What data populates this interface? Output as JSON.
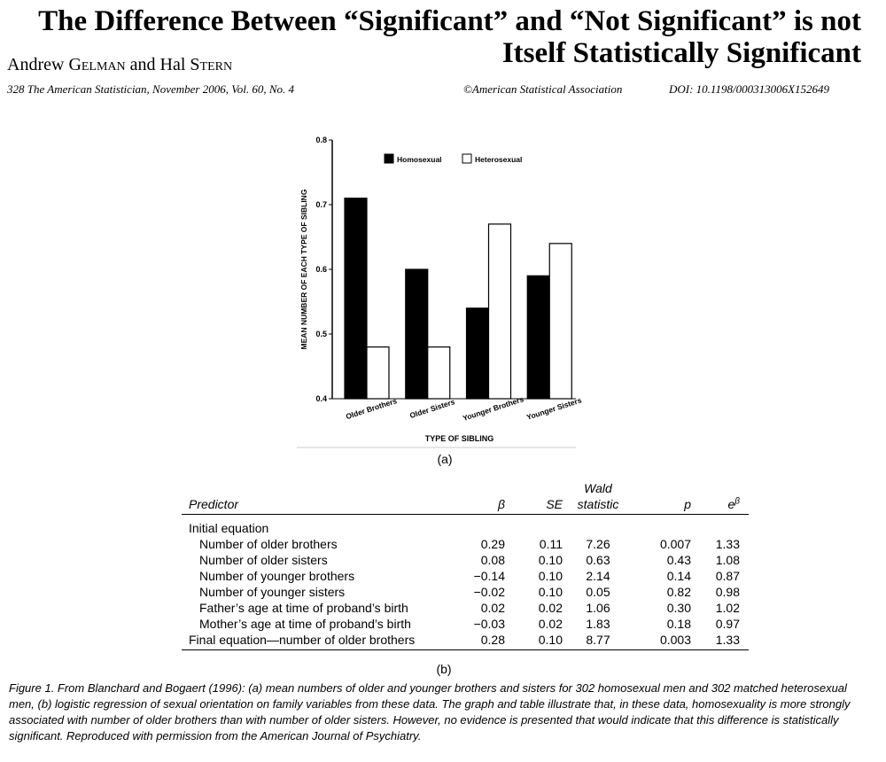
{
  "header": {
    "title": "The Difference Between “Significant” and “Not Significant” is not Itself Statistically Significant",
    "author1_first": "Andrew ",
    "author1_last": "Gelman",
    "and": " and Hal ",
    "author2_last": "Stern",
    "citation": "328    The American Statistician, November 2006, Vol. 60, No. 4",
    "copyright": "©American Statistical Association",
    "doi": "DOI: 10.1198/000313006X152649"
  },
  "chart_data": {
    "type": "bar",
    "categories": [
      "Older Brothers",
      "Older Sisters",
      "Younger Brothers",
      "Younger Sisters"
    ],
    "series": [
      {
        "name": "Homosexual",
        "values": [
          0.71,
          0.6,
          0.54,
          0.59
        ],
        "color": "#000000"
      },
      {
        "name": "Heterosexual",
        "values": [
          0.48,
          0.48,
          0.67,
          0.64
        ],
        "color": "#ffffff"
      }
    ],
    "ylim": [
      0.4,
      0.8
    ],
    "yticks": [
      "0.4",
      "0.5",
      "0.6",
      "0.7",
      "0.8"
    ],
    "xlabel": "TYPE OF SIBLING",
    "ylabel": "MEAN NUMBER OF EACH TYPE OF SIBLING",
    "legend_position": "top",
    "grid": false
  },
  "figure": {
    "label_a": "(a)",
    "label_b": "(b)",
    "caption": "Figure 1.   From Blanchard and Bogaert (1996): (a) mean numbers of older and younger brothers and sisters for 302 homosexual men and 302 matched heterosexual men, (b) logistic regression of sexual orientation on family variables from these data. The graph and table illustrate that, in these data, homosexuality is more strongly associated with number of older brothers than with number of older sisters. However, no evidence is presented that would indicate that this difference is statistically significant. Reproduced with permission from the American Journal of Psychiatry."
  },
  "table": {
    "headers": {
      "predictor": "Predictor",
      "beta": "β",
      "se": "SE",
      "wald_line1": "Wald",
      "wald_line2": "statistic",
      "p": "p",
      "ebeta_base": "e",
      "ebeta_exp": "β"
    },
    "initial_label": "Initial equation",
    "rows": [
      {
        "predictor": "Number of older brothers",
        "beta": "0.29",
        "se": "0.11",
        "wald": "7.26",
        "p": "0.007",
        "ebeta": "1.33"
      },
      {
        "predictor": "Number of older sisters",
        "beta": "0.08",
        "se": "0.10",
        "wald": "0.63",
        "p": "0.43",
        "ebeta": "1.08"
      },
      {
        "predictor": "Number of younger brothers",
        "beta": "−0.14",
        "se": "0.10",
        "wald": "2.14",
        "p": "0.14",
        "ebeta": "0.87"
      },
      {
        "predictor": "Number of younger sisters",
        "beta": "−0.02",
        "se": "0.10",
        "wald": "0.05",
        "p": "0.82",
        "ebeta": "0.98"
      },
      {
        "predictor": "Father’s age at time of proband’s birth",
        "beta": "0.02",
        "se": "0.02",
        "wald": "1.06",
        "p": "0.30",
        "ebeta": "1.02"
      },
      {
        "predictor": "Mother’s age at time of proband’s birth",
        "beta": "−0.03",
        "se": "0.02",
        "wald": "1.83",
        "p": "0.18",
        "ebeta": "0.97"
      }
    ],
    "final": {
      "predictor": "Final equation—number of older brothers",
      "beta": "0.28",
      "se": "0.10",
      "wald": "8.77",
      "p": "0.003",
      "ebeta": "1.33"
    }
  }
}
